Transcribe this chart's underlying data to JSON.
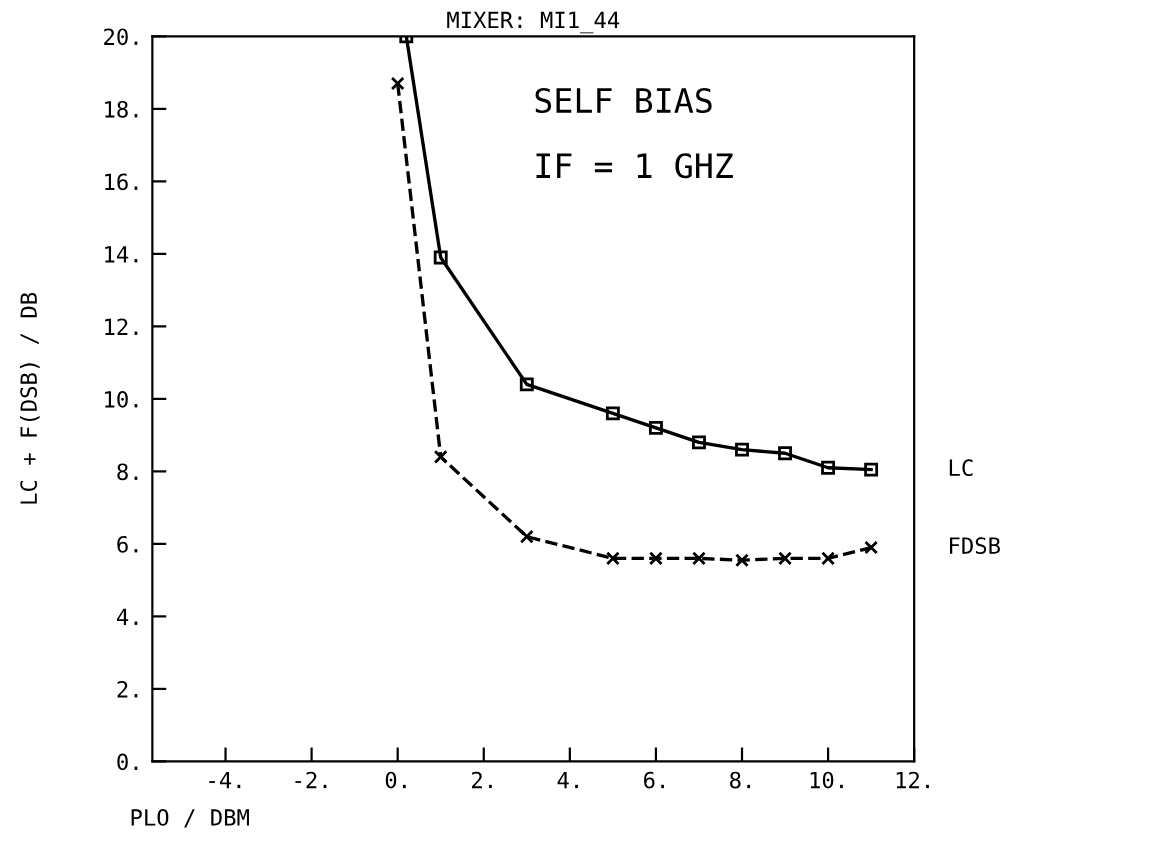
{
  "chart_data": {
    "type": "line",
    "title": "MIXER: MI1_44",
    "xlabel": "PLO / DBM",
    "ylabel": "LC + F(DSB) / DB",
    "annotations": [
      "SELF BIAS",
      "IF = 1 GHZ"
    ],
    "xlim": [
      -5.7,
      12
    ],
    "ylim": [
      0,
      20
    ],
    "xticks": [
      {
        "value": -4,
        "label": "-4."
      },
      {
        "value": -2,
        "label": "-2."
      },
      {
        "value": 0,
        "label": "0."
      },
      {
        "value": 2,
        "label": "2."
      },
      {
        "value": 4,
        "label": "4."
      },
      {
        "value": 6,
        "label": "6."
      },
      {
        "value": 8,
        "label": "8."
      },
      {
        "value": 10,
        "label": "10."
      },
      {
        "value": 12,
        "label": "12."
      }
    ],
    "yticks": [
      {
        "value": 0,
        "label": "0."
      },
      {
        "value": 2,
        "label": "2."
      },
      {
        "value": 4,
        "label": "4."
      },
      {
        "value": 6,
        "label": "6."
      },
      {
        "value": 8,
        "label": "8."
      },
      {
        "value": 10,
        "label": "10."
      },
      {
        "value": 12,
        "label": "12."
      },
      {
        "value": 14,
        "label": "14."
      },
      {
        "value": 16,
        "label": "16."
      },
      {
        "value": 18,
        "label": "18."
      },
      {
        "value": 20,
        "label": "20."
      }
    ],
    "grid": false,
    "legend": false,
    "series": [
      {
        "name": "LC",
        "color": "#000000",
        "marker": "square",
        "line_style": "solid",
        "x": [
          0.2,
          1,
          3,
          5,
          6,
          7,
          8,
          9,
          10,
          11
        ],
        "values": [
          20,
          13.9,
          10.4,
          9.6,
          9.2,
          8.8,
          8.6,
          8.5,
          8.1,
          8.05
        ]
      },
      {
        "name": "FDSB",
        "color": "#000000",
        "marker": "cross",
        "line_style": "dashed",
        "x": [
          0,
          1,
          3,
          5,
          6,
          7,
          8,
          9,
          10,
          11
        ],
        "values": [
          18.7,
          8.4,
          6.2,
          5.6,
          5.6,
          5.6,
          5.55,
          5.6,
          5.6,
          5.9
        ]
      }
    ]
  }
}
